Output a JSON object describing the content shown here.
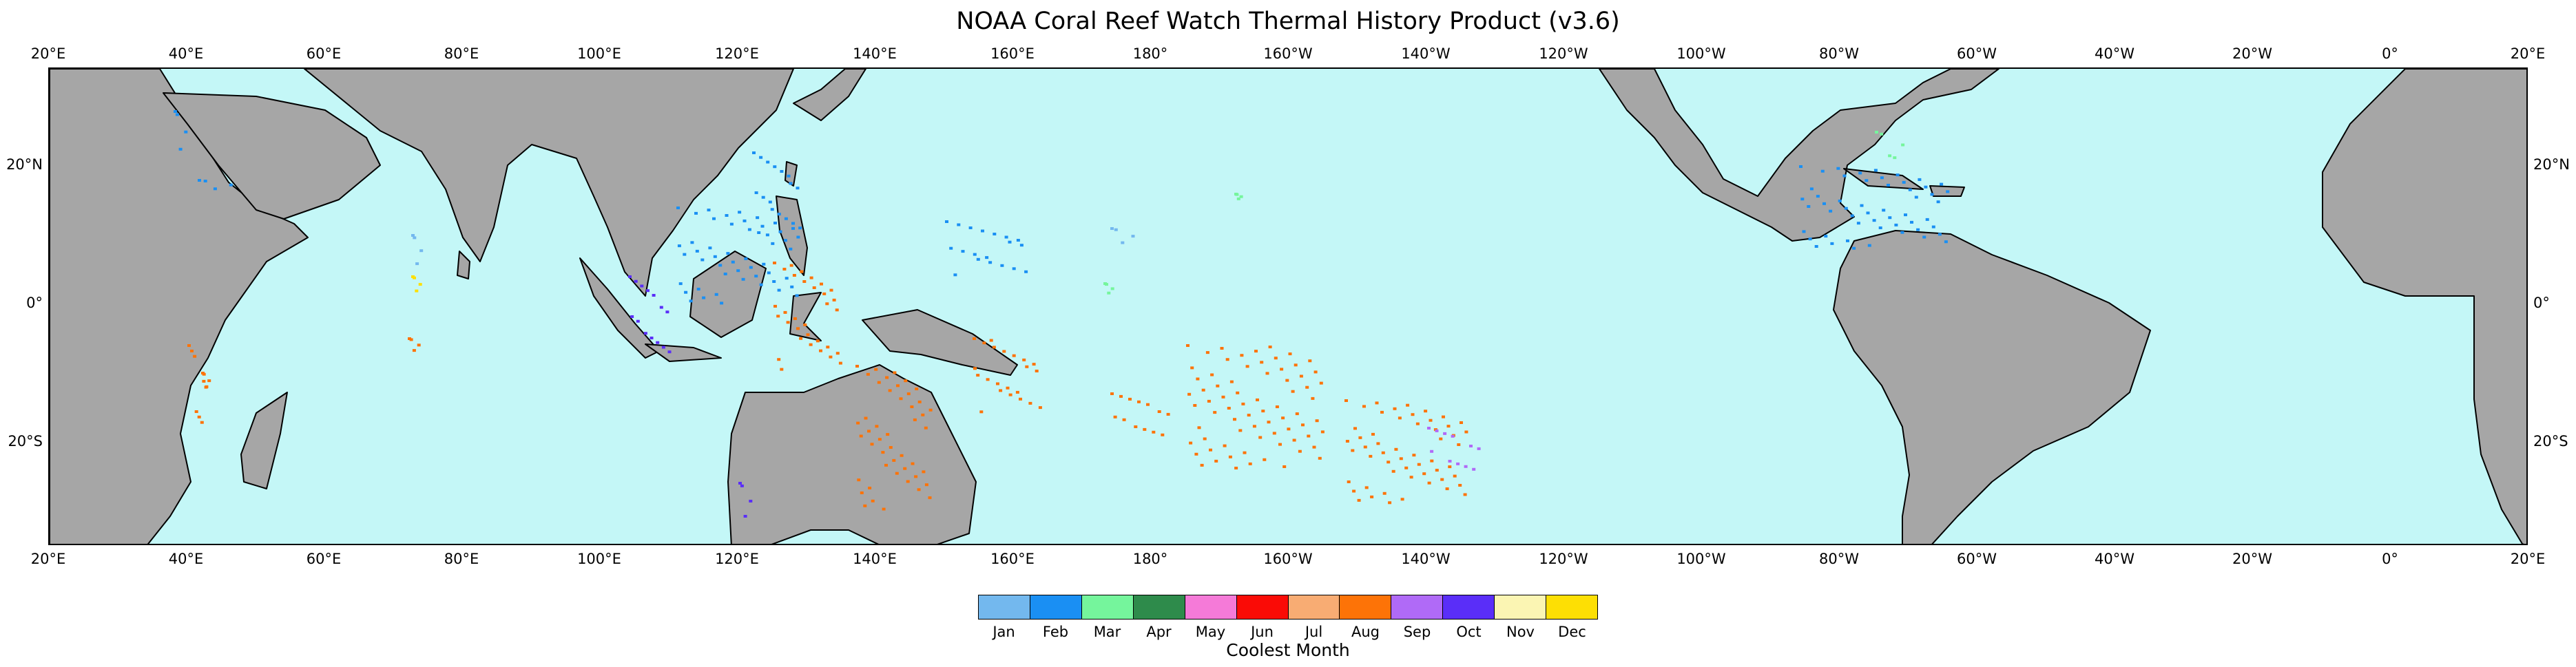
{
  "title": "NOAA Coral Reef Watch Thermal History Product (v3.6)",
  "map": {
    "projection": "plate-carree",
    "central_longitude": 200,
    "lon_range": [
      20,
      380
    ],
    "lat_range": [
      -35,
      34
    ],
    "colors": {
      "ocean": "#c4f7f7",
      "land": "#a6a6a6",
      "coast": "#000000"
    },
    "x_ticks": [
      "20°E",
      "40°E",
      "60°E",
      "80°E",
      "100°E",
      "120°E",
      "140°E",
      "160°E",
      "180°",
      "160°W",
      "140°W",
      "120°W",
      "100°W",
      "80°W",
      "60°W",
      "40°W",
      "20°W",
      "0°",
      "20°E"
    ],
    "y_ticks": [
      "20°N",
      "0°",
      "20°S"
    ]
  },
  "colorbar": {
    "title": "Coolest Month",
    "entries": [
      {
        "label": "Jan",
        "color": "#73b8ee"
      },
      {
        "label": "Feb",
        "color": "#1a8ff3"
      },
      {
        "label": "Mar",
        "color": "#75f59c"
      },
      {
        "label": "Apr",
        "color": "#2e8b4b"
      },
      {
        "label": "May",
        "color": "#f57ad8"
      },
      {
        "label": "Jun",
        "color": "#fa0b06"
      },
      {
        "label": "Jul",
        "color": "#f8ac73"
      },
      {
        "label": "Aug",
        "color": "#fd7307"
      },
      {
        "label": "Sep",
        "color": "#b06af7"
      },
      {
        "label": "Oct",
        "color": "#5a2ef8"
      },
      {
        "label": "Nov",
        "color": "#fbf5b3"
      },
      {
        "label": "Dec",
        "color": "#fddf04"
      }
    ]
  }
}
